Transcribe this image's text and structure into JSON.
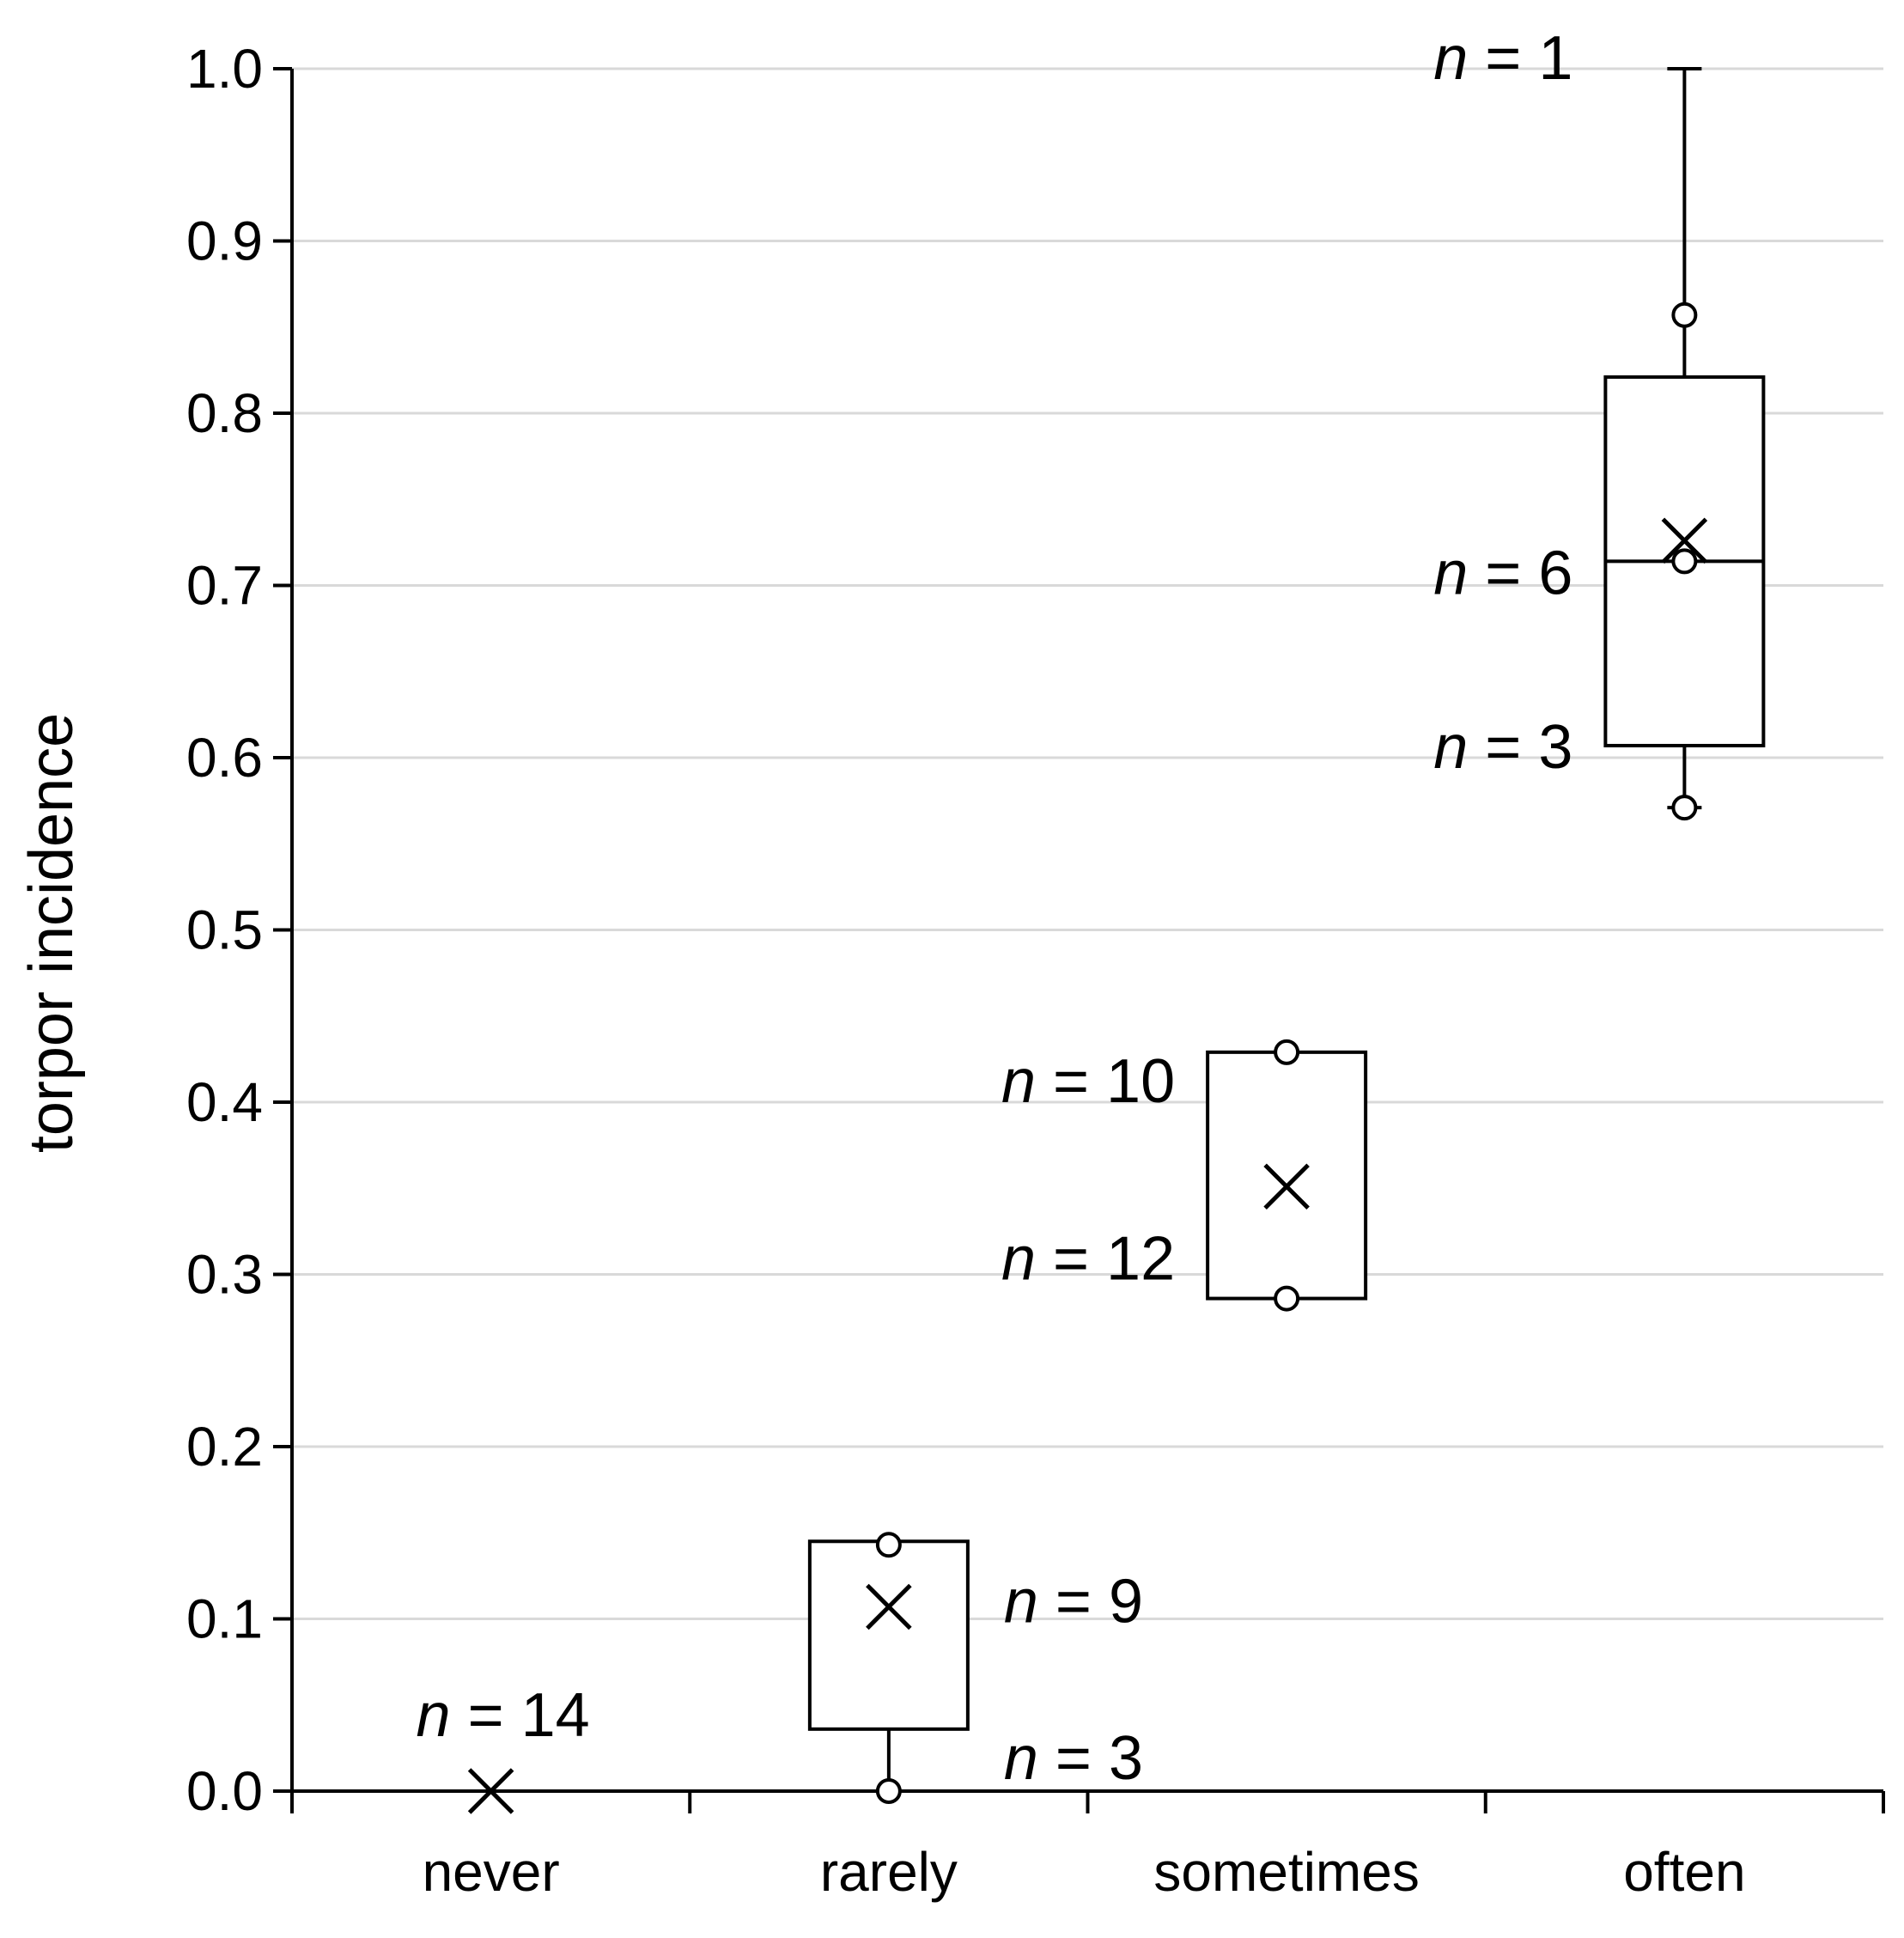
{
  "chart_data": {
    "type": "box",
    "ylabel": "torpor incidence",
    "xlabel": "",
    "ylim": [
      0,
      1
    ],
    "yticks": [
      "0.0",
      "0.1",
      "0.2",
      "0.3",
      "0.4",
      "0.5",
      "0.6",
      "0.7",
      "0.8",
      "0.9",
      "1.0"
    ],
    "grid": true,
    "categories": [
      "never",
      "rarely",
      "sometimes",
      "often"
    ],
    "boxes": [
      {
        "category": "never",
        "whisker_low": 0.0,
        "q1": 0.0,
        "median": 0.0,
        "q3": 0.0,
        "whisker_high": 0.0,
        "mean": 0.0,
        "points": [],
        "n_labels": [
          {
            "text": "n = 14",
            "y": 0.045,
            "side": "left"
          }
        ]
      },
      {
        "category": "rarely",
        "whisker_low": 0.0,
        "q1": 0.036,
        "median": null,
        "q3": 0.145,
        "whisker_high": 0.145,
        "mean": 0.107,
        "points": [
          0.143,
          0.0
        ],
        "n_labels": [
          {
            "text": "n = 9",
            "y": 0.111,
            "side": "right"
          },
          {
            "text": "n = 3",
            "y": 0.02,
            "side": "right"
          }
        ]
      },
      {
        "category": "sometimes",
        "whisker_low": 0.286,
        "q1": 0.286,
        "median": null,
        "q3": 0.429,
        "whisker_high": 0.429,
        "mean": 0.351,
        "points": [
          0.429,
          0.286
        ],
        "n_labels": [
          {
            "text": "n = 10",
            "y": 0.413,
            "side": "left"
          },
          {
            "text": "n = 12",
            "y": 0.31,
            "side": "left"
          }
        ]
      },
      {
        "category": "often",
        "whisker_low": 0.571,
        "q1": 0.607,
        "median": 0.714,
        "q3": 0.821,
        "whisker_high": 1.0,
        "mean": 0.726,
        "points": [
          0.857,
          0.714,
          0.571
        ],
        "n_labels": [
          {
            "text": "n = 1",
            "y": 1.007,
            "side": "left"
          },
          {
            "text": "n = 6",
            "y": 0.708,
            "side": "left"
          },
          {
            "text": "n = 3",
            "y": 0.607,
            "side": "left"
          }
        ]
      }
    ]
  }
}
